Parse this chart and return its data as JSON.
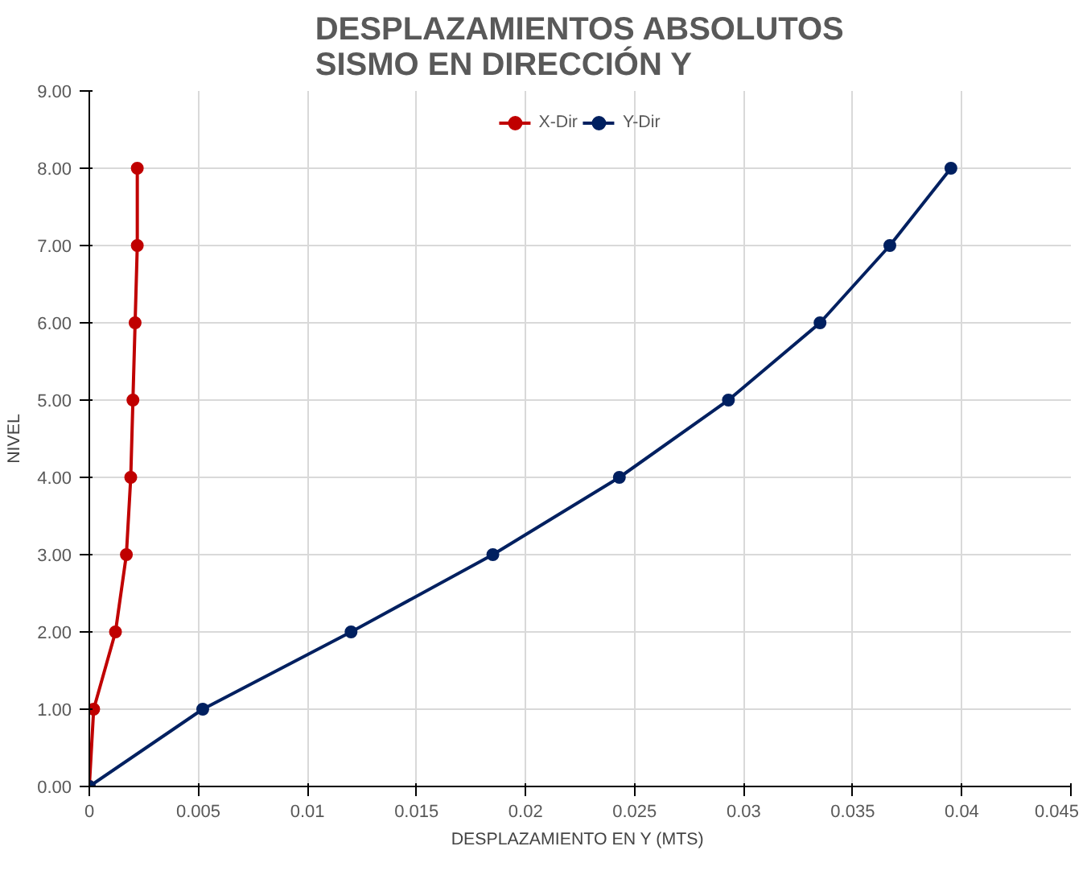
{
  "chart_data": {
    "type": "line",
    "title": "DESPLAZAMIENTOS ABSOLUTOS\nSISMO EN DIRECCIÓN Y",
    "xlabel": "DESPLAZAMIENTO EN Y  (MTS)",
    "ylabel": "NIVEL",
    "series": [
      {
        "name": "X-Dir",
        "color": "#c00000",
        "x": [
          0,
          0.0002,
          0.0012,
          0.0017,
          0.0019,
          0.002,
          0.0021,
          0.0022,
          0.0022
        ],
        "values": [
          0,
          1,
          2,
          3,
          4,
          5,
          6,
          7,
          8
        ]
      },
      {
        "name": "Y-Dir",
        "color": "#002060",
        "x": [
          0,
          0.0052,
          0.012,
          0.0185,
          0.0243,
          0.0293,
          0.0335,
          0.0367,
          0.0395
        ],
        "values": [
          0,
          1,
          2,
          3,
          4,
          5,
          6,
          7,
          8
        ]
      }
    ],
    "xlim": [
      0,
      0.045
    ],
    "xticks": [
      0,
      0.005,
      0.01,
      0.015,
      0.02,
      0.025,
      0.03,
      0.035,
      0.04,
      0.045
    ],
    "ylim": [
      0,
      9
    ],
    "yticks": [
      {
        "value": 0,
        "label": "0.00"
      },
      {
        "value": 1,
        "label": "1.00"
      },
      {
        "value": 2,
        "label": "2.00"
      },
      {
        "value": 3,
        "label": "3.00"
      },
      {
        "value": 4,
        "label": "4.00"
      },
      {
        "value": 5,
        "label": "5.00"
      },
      {
        "value": 6,
        "label": "6.00"
      },
      {
        "value": 7,
        "label": "7.00"
      },
      {
        "value": 8,
        "label": "8.00"
      },
      {
        "value": 9,
        "label": "9.00"
      }
    ],
    "grid": true,
    "legend": "top",
    "marker": "circle",
    "line_style": "solid"
  }
}
